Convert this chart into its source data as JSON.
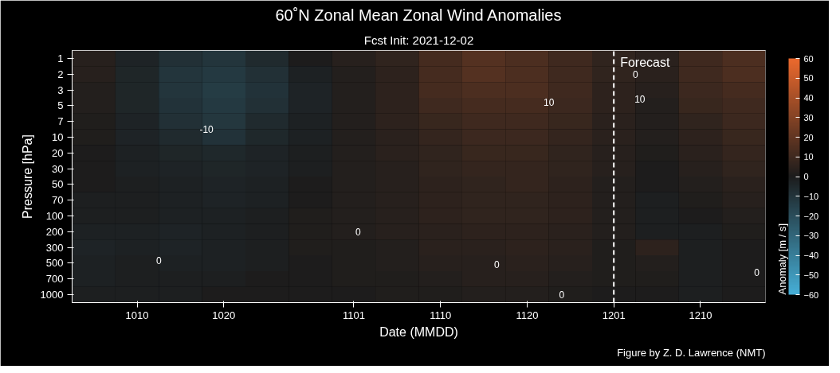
{
  "chart_data": {
    "type": "heatmap",
    "title": "60˚N Zonal Mean Zonal Wind Anomalies",
    "subtitle": "Fcst Init: 2021-12-02",
    "xlabel": "Date (MMDD)",
    "ylabel": "Pressure [hPa]",
    "clabel": "Anomaly [m / s]",
    "categories": [
      null,
      "1010",
      null,
      "1020",
      null,
      null,
      "1101",
      null,
      "1110",
      null,
      "1120",
      null,
      "1201",
      null,
      "1210",
      null
    ],
    "y_categories": [
      "1",
      "2",
      "3",
      "5",
      "7",
      "10",
      "20",
      "30",
      "50",
      "70",
      "100",
      "200",
      "300",
      "500",
      "700",
      "1000"
    ],
    "cells": [
      [
        3,
        -3,
        -8,
        -10,
        -6,
        0,
        3,
        6,
        12,
        16,
        14,
        10,
        6,
        4,
        10,
        14
      ],
      [
        3,
        -4,
        -10,
        -12,
        -8,
        -2,
        2,
        5,
        12,
        16,
        14,
        10,
        6,
        4,
        10,
        14
      ],
      [
        2,
        -4,
        -10,
        -13,
        -9,
        -3,
        2,
        5,
        12,
        14,
        14,
        10,
        5,
        3,
        9,
        12
      ],
      [
        2,
        -4,
        -9,
        -12,
        -8,
        -3,
        2,
        5,
        10,
        12,
        12,
        9,
        5,
        2,
        8,
        10
      ],
      [
        1,
        -3,
        -8,
        -11,
        -6,
        -2,
        2,
        5,
        8,
        10,
        10,
        8,
        4,
        2,
        6,
        9
      ],
      [
        1,
        -3,
        -6,
        -9,
        -5,
        -2,
        2,
        4,
        7,
        9,
        9,
        7,
        4,
        2,
        5,
        8
      ],
      [
        0,
        -2,
        -4,
        -5,
        -3,
        -1,
        2,
        4,
        6,
        8,
        8,
        6,
        3,
        1,
        4,
        7
      ],
      [
        0,
        -2,
        -3,
        -4,
        -3,
        -1,
        2,
        3,
        6,
        7,
        7,
        6,
        3,
        0,
        3,
        6
      ],
      [
        0,
        -1,
        -2,
        -3,
        -2,
        0,
        2,
        3,
        5,
        6,
        7,
        5,
        2,
        0,
        2,
        4
      ],
      [
        -1,
        -1,
        -2,
        -3,
        -2,
        0,
        2,
        3,
        5,
        6,
        6,
        5,
        2,
        -1,
        1,
        3
      ],
      [
        -1,
        -1,
        -2,
        -2,
        -1,
        1,
        2,
        3,
        5,
        6,
        6,
        5,
        2,
        -1,
        0,
        2
      ],
      [
        -2,
        -2,
        -3,
        -2,
        -1,
        1,
        2,
        3,
        4,
        5,
        5,
        4,
        2,
        -1,
        -1,
        1
      ],
      [
        -3,
        -2,
        -3,
        -2,
        -1,
        1,
        1,
        2,
        4,
        4,
        5,
        4,
        1,
        5,
        -1,
        0
      ],
      [
        -2,
        -1,
        -2,
        -2,
        -1,
        0,
        1,
        2,
        3,
        3,
        4,
        3,
        1,
        2,
        -1,
        0
      ],
      [
        -2,
        -1,
        -1,
        -1,
        0,
        0,
        1,
        1,
        2,
        3,
        3,
        2,
        1,
        1,
        -1,
        0
      ],
      [
        -1,
        -1,
        -1,
        0,
        0,
        0,
        0,
        1,
        1,
        2,
        2,
        1,
        0,
        0,
        -1,
        0
      ]
    ],
    "clim": [
      -60,
      60
    ],
    "cticks": [
      -60,
      -50,
      -40,
      -30,
      -20,
      -10,
      0,
      10,
      20,
      30,
      40,
      50,
      60
    ],
    "ref_lines": [
      {
        "axis": "x",
        "value": "1201",
        "label": "Forecast",
        "color": "#ffffff",
        "line_style": "dashed"
      }
    ],
    "annotations": [
      "-10",
      "10",
      "10",
      "0",
      "0",
      "0",
      "0",
      "0",
      "0",
      "Figure by Z. D. Lawrence (NMT)"
    ]
  }
}
